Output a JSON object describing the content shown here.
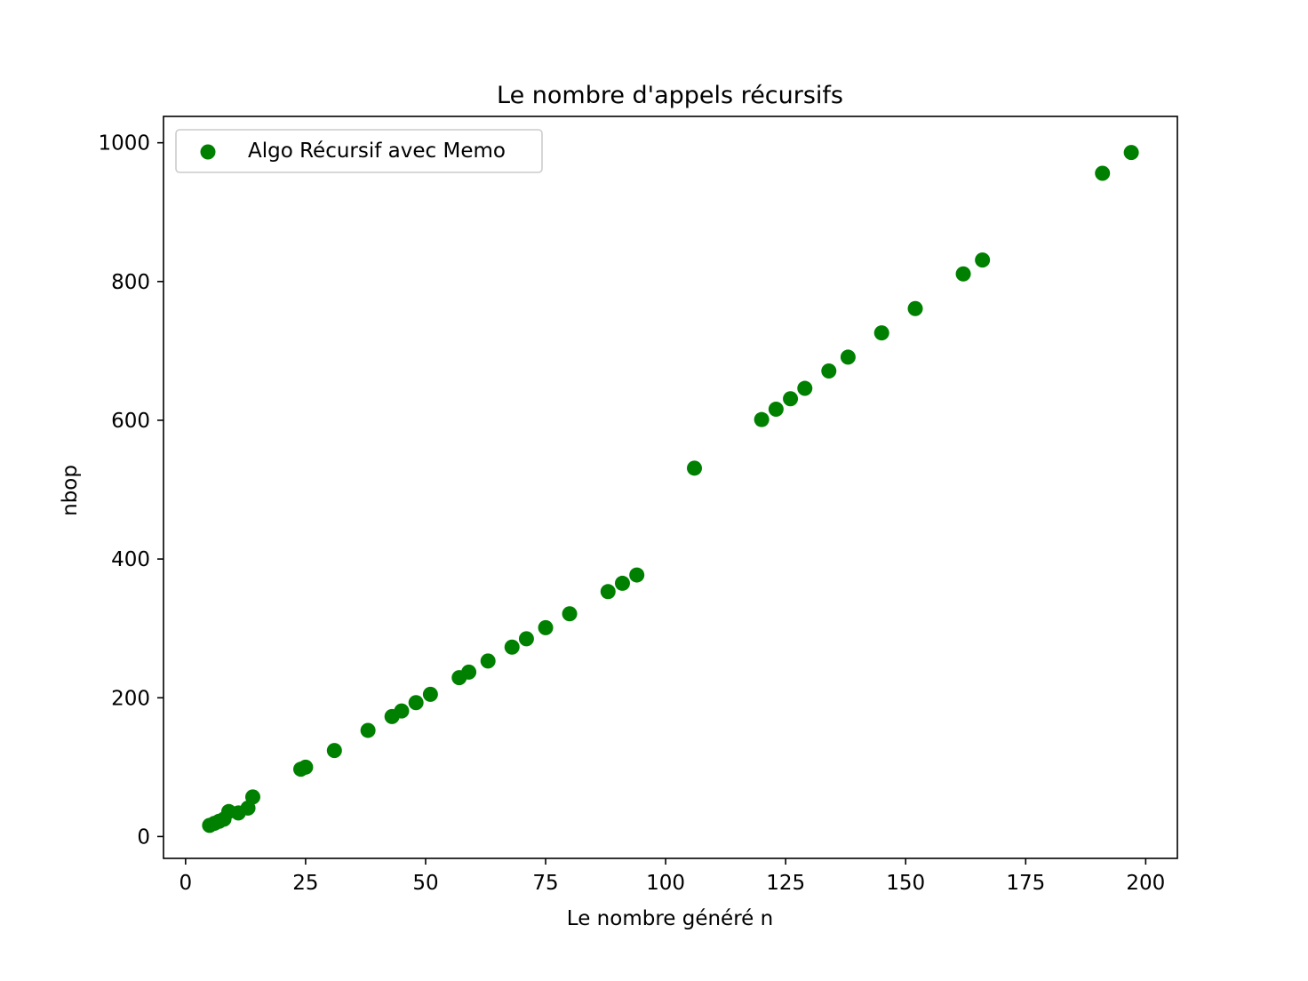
{
  "chart_data": {
    "type": "scatter",
    "title": "Le nombre d'appels récursifs",
    "xlabel": "Le nombre généré n",
    "ylabel": "nbop",
    "xlim": [
      -4.6,
      206.6
    ],
    "ylim": [
      -31.5,
      1038
    ],
    "xticks": [
      0,
      25,
      50,
      75,
      100,
      125,
      150,
      175,
      200
    ],
    "yticks": [
      0,
      200,
      400,
      600,
      800,
      1000
    ],
    "grid": false,
    "legend_position": "upper-left",
    "series": [
      {
        "name": "Algo Récursif avec Memo",
        "color": "#008000",
        "marker": "circle",
        "points": [
          {
            "x": 5,
            "y": 16
          },
          {
            "x": 6,
            "y": 19
          },
          {
            "x": 7,
            "y": 22
          },
          {
            "x": 8,
            "y": 25
          },
          {
            "x": 9,
            "y": 36
          },
          {
            "x": 11,
            "y": 34
          },
          {
            "x": 13,
            "y": 41
          },
          {
            "x": 14,
            "y": 57
          },
          {
            "x": 24,
            "y": 97
          },
          {
            "x": 25,
            "y": 100
          },
          {
            "x": 31,
            "y": 124
          },
          {
            "x": 38,
            "y": 153
          },
          {
            "x": 43,
            "y": 173
          },
          {
            "x": 45,
            "y": 181
          },
          {
            "x": 48,
            "y": 193
          },
          {
            "x": 51,
            "y": 205
          },
          {
            "x": 57,
            "y": 229
          },
          {
            "x": 59,
            "y": 237
          },
          {
            "x": 63,
            "y": 253
          },
          {
            "x": 68,
            "y": 273
          },
          {
            "x": 71,
            "y": 285
          },
          {
            "x": 75,
            "y": 301
          },
          {
            "x": 80,
            "y": 321
          },
          {
            "x": 88,
            "y": 353
          },
          {
            "x": 91,
            "y": 365
          },
          {
            "x": 94,
            "y": 377
          },
          {
            "x": 106,
            "y": 531
          },
          {
            "x": 120,
            "y": 601
          },
          {
            "x": 123,
            "y": 616
          },
          {
            "x": 126,
            "y": 631
          },
          {
            "x": 129,
            "y": 646
          },
          {
            "x": 134,
            "y": 671
          },
          {
            "x": 138,
            "y": 691
          },
          {
            "x": 145,
            "y": 726
          },
          {
            "x": 152,
            "y": 761
          },
          {
            "x": 162,
            "y": 811
          },
          {
            "x": 166,
            "y": 831
          },
          {
            "x": 191,
            "y": 956
          },
          {
            "x": 197,
            "y": 986
          }
        ]
      }
    ]
  }
}
